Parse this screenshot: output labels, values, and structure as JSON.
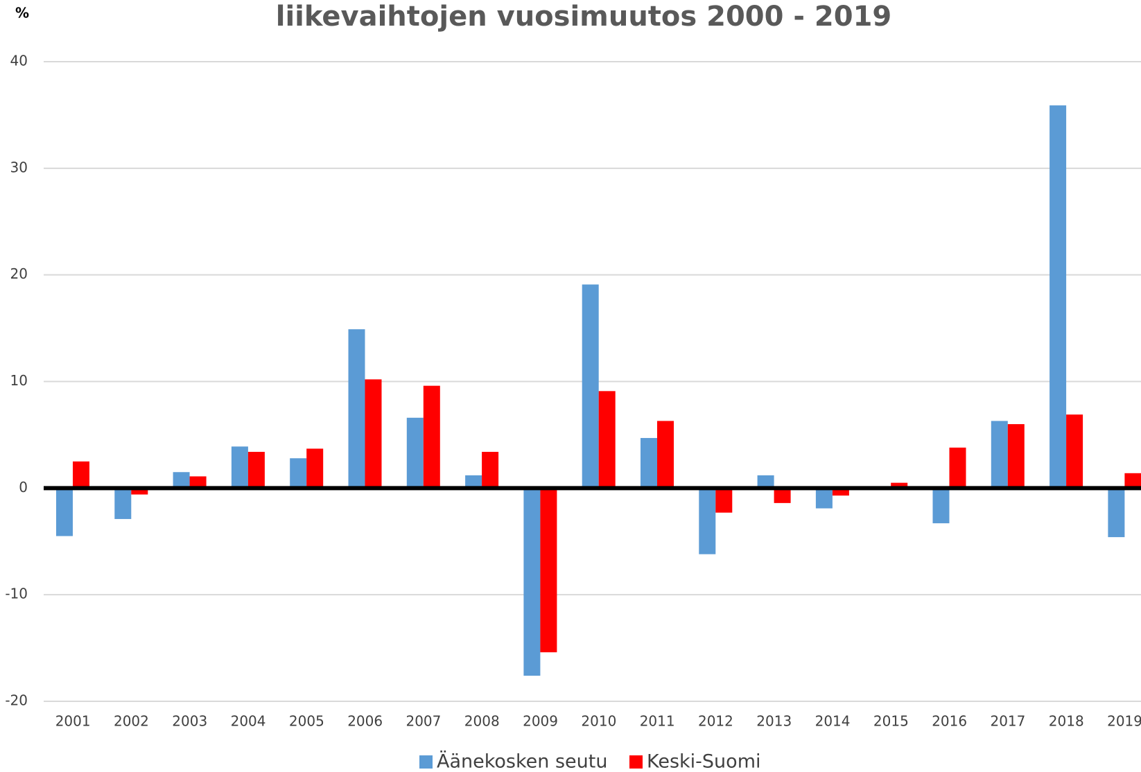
{
  "chart_data": {
    "type": "bar",
    "title": "liikevaihtojen vuosimuutos 2000 - 2019",
    "y_label": "%",
    "categories": [
      "2001",
      "2002",
      "2003",
      "2004",
      "2005",
      "2006",
      "2007",
      "2008",
      "2009",
      "2010",
      "2011",
      "2012",
      "2013",
      "2014",
      "2015",
      "2016",
      "2017",
      "2018",
      "2019"
    ],
    "series": [
      {
        "name": "Äänekosken seutu",
        "color": "#5b9bd5",
        "values": [
          -4.5,
          -2.9,
          1.5,
          3.9,
          2.8,
          14.9,
          6.6,
          1.2,
          -17.6,
          19.1,
          4.7,
          -6.2,
          1.2,
          -1.9,
          0,
          -3.3,
          6.3,
          35.9,
          -4.6
        ]
      },
      {
        "name": "Keski-Suomi",
        "color": "#ff0000",
        "values": [
          2.5,
          -0.6,
          1.1,
          3.4,
          3.7,
          10.2,
          9.6,
          3.4,
          -15.4,
          9.1,
          6.3,
          -2.3,
          -1.4,
          -0.7,
          0.5,
          3.8,
          6.0,
          6.9,
          1.4
        ]
      }
    ],
    "ylim": [
      -20,
      40
    ],
    "yticks": [
      -20,
      -10,
      0,
      10,
      20,
      30,
      40
    ],
    "grid": true
  }
}
